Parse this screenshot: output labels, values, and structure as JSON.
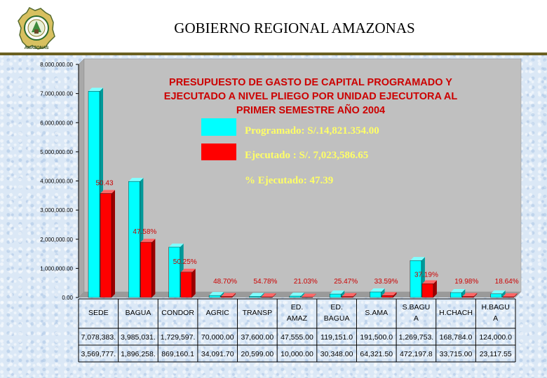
{
  "header": {
    "title": "GOBIERNO REGIONAL AMAZONAS",
    "logo_text": "AMAZONAS"
  },
  "colors": {
    "programado": "#00ffff",
    "ejecutado": "#ff0000",
    "plot_bg": "#c0c0c0",
    "header_border": "#6b6020"
  },
  "chart_data": {
    "type": "bar",
    "title": "PRESUPUESTO DE GASTO DE CAPITAL PROGRAMADO Y EJECUTADO A NIVEL PLIEGO POR UNIDAD EJECUTORA AL PRIMER SEMESTRE AÑO 2004",
    "title_lines": [
      "PRESUPUESTO DE GASTO DE CAPITAL PROGRAMADO Y",
      "EJECUTADO A NIVEL PLIEGO POR UNIDAD EJECUTORA AL",
      "PRIMER SEMESTRE AÑO 2004"
    ],
    "ylim": [
      0,
      8000000
    ],
    "yticks": [
      0,
      1000000,
      2000000,
      3000000,
      4000000,
      5000000,
      6000000,
      7000000,
      8000000
    ],
    "ytick_labels": [
      "0.00",
      "1,000,000.00",
      "2,000,000.00",
      "3,000,000.00",
      "4,000,000.00",
      "5,000,000.00",
      "6,000,000.00",
      "7,000,000.00",
      "8,000,000.00"
    ],
    "categories": [
      [
        "SEDE"
      ],
      [
        "BAGUA"
      ],
      [
        "CONDOR"
      ],
      [
        "AGRIC"
      ],
      [
        "TRANSP"
      ],
      [
        "ED.",
        "AMAZ"
      ],
      [
        "ED.",
        "BAGUA"
      ],
      [
        "S.AMA"
      ],
      [
        "S.BAGU",
        "A"
      ],
      [
        "H.CHACH"
      ],
      [
        "H.BAGU",
        "A"
      ]
    ],
    "series": [
      {
        "values": [
          7078383,
          3985031,
          1729597,
          70000,
          37600,
          47555,
          119151,
          191500,
          1269753,
          168784,
          124000
        ],
        "table_labels": [
          "7,078,383.",
          "3,985,031.",
          "1,729,597.",
          "70,000.00",
          "37,600.00",
          "47,555.00",
          "119,151.0",
          "191,500.0",
          "1,269,753.",
          "168,784.0",
          "124,000.0"
        ]
      },
      {
        "values": [
          3569777,
          1896258,
          869160.1,
          34091.7,
          20599,
          10000,
          30348,
          64321.5,
          472197.8,
          33715,
          23117.55
        ],
        "table_labels": [
          "3,569,777.",
          "1,896,258.",
          "869,160.1",
          "34,091.70",
          "20,599.00",
          "10,000.00",
          "30,348.00",
          "64,321.50",
          "472,197.8",
          "33,715.00",
          "23,117.55"
        ]
      }
    ],
    "percentages": [
      "50.43",
      "47.58%",
      "50.25%",
      "48.70%",
      "54.78%",
      "21.03%",
      "25.47%",
      "33.59%",
      "37.19%",
      "19.98%",
      "18.64%"
    ],
    "legend": {
      "programado": "Programado: S/.14,821.354.00",
      "ejecutado": "Ejecutado   : S/.  7,023,586.65",
      "percent": "%  Ejecutado: 47.39"
    }
  }
}
